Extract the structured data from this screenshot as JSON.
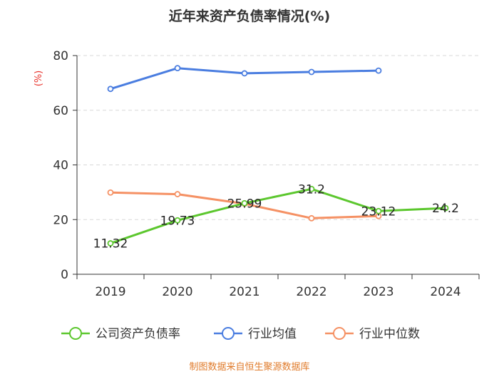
{
  "chart_data": {
    "type": "line",
    "title": "近年来资产负债率情况(%)",
    "ylabel": "(%)",
    "xlabel": "",
    "categories": [
      "2019",
      "2020",
      "2021",
      "2022",
      "2023",
      "2024"
    ],
    "ylim": [
      0,
      80
    ],
    "yticks": [
      0,
      20,
      40,
      60,
      80
    ],
    "grid": true,
    "legend_position": "bottom",
    "series": [
      {
        "name": "公司资产负债率",
        "color": "#5cc72e",
        "values": [
          11.32,
          19.73,
          25.99,
          31.2,
          23.12,
          24.2
        ],
        "labels": [
          "11.32",
          "19.73",
          "25.99",
          "31.2",
          "23.12",
          "24.2"
        ]
      },
      {
        "name": "行业均值",
        "color": "#4a7de0",
        "values": [
          67.8,
          75.4,
          73.5,
          74.0,
          74.5,
          null
        ]
      },
      {
        "name": "行业中位数",
        "color": "#f59164",
        "values": [
          29.9,
          29.3,
          25.8,
          20.5,
          21.3,
          null
        ]
      }
    ],
    "source": "制图数据来自恒生聚源数据库"
  }
}
